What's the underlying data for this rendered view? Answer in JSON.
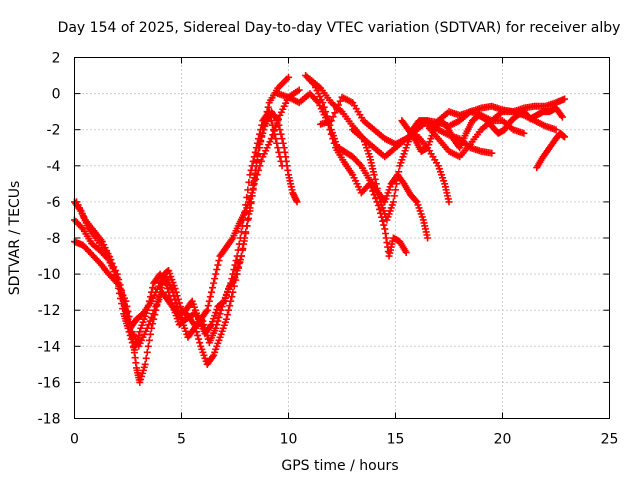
{
  "chart_data": {
    "type": "scatter",
    "title": "Day 154 of 2025, Sidereal Day-to-day VTEC variation (SDTVAR) for receiver alby",
    "xlabel": "GPS time / hours",
    "ylabel": "SDTVAR / TECUs",
    "xlim": [
      0,
      25
    ],
    "ylim": [
      -18,
      2
    ],
    "x_ticks": [
      0,
      5,
      10,
      15,
      20,
      25
    ],
    "y_ticks": [
      2,
      0,
      -2,
      -4,
      -6,
      -8,
      -10,
      -12,
      -14,
      -16,
      -18
    ],
    "grid": true,
    "marker": "+",
    "color": "#ff0000",
    "series": [
      {
        "name": "track-1",
        "points": [
          [
            0.0,
            -6.0
          ],
          [
            0.3,
            -6.5
          ],
          [
            0.6,
            -7.3
          ],
          [
            1.0,
            -8.0
          ],
          [
            1.5,
            -8.8
          ],
          [
            2.0,
            -10.0
          ],
          [
            2.4,
            -11.8
          ],
          [
            2.7,
            -13.5
          ],
          [
            2.9,
            -15.2
          ],
          [
            3.05,
            -16.0
          ],
          [
            3.3,
            -15.0
          ],
          [
            3.6,
            -13.0
          ],
          [
            3.9,
            -11.5
          ],
          [
            4.2,
            -10.0
          ],
          [
            4.4,
            -9.8
          ],
          [
            4.7,
            -10.8
          ],
          [
            5.0,
            -12.0
          ],
          [
            5.3,
            -12.3
          ],
          [
            5.6,
            -12.8
          ],
          [
            5.9,
            -14.0
          ],
          [
            6.2,
            -15.0
          ],
          [
            6.5,
            -14.5
          ],
          [
            6.8,
            -13.5
          ],
          [
            7.1,
            -12.5
          ],
          [
            7.4,
            -11.0
          ],
          [
            7.8,
            -9.0
          ],
          [
            8.2,
            -6.5
          ],
          [
            8.5,
            -4.0
          ],
          [
            8.8,
            -2.0
          ],
          [
            9.1,
            -0.5
          ],
          [
            9.5,
            0.3
          ],
          [
            10.0,
            0.9
          ]
        ]
      },
      {
        "name": "track-2",
        "points": [
          [
            0.0,
            -7.0
          ],
          [
            0.4,
            -7.5
          ],
          [
            0.8,
            -8.3
          ],
          [
            1.2,
            -8.7
          ],
          [
            1.6,
            -9.2
          ],
          [
            2.0,
            -10.2
          ],
          [
            2.4,
            -12.0
          ],
          [
            2.6,
            -13.0
          ],
          [
            2.9,
            -12.5
          ],
          [
            3.2,
            -12.2
          ],
          [
            3.6,
            -11.5
          ],
          [
            4.0,
            -10.5
          ],
          [
            4.3,
            -10.2
          ],
          [
            4.6,
            -11.0
          ],
          [
            4.9,
            -12.3
          ],
          [
            5.2,
            -12.0
          ],
          [
            5.5,
            -11.5
          ],
          [
            5.8,
            -12.5
          ],
          [
            6.1,
            -13.3
          ],
          [
            6.4,
            -12.8
          ],
          [
            6.7,
            -11.8
          ],
          [
            7.0,
            -11.5
          ],
          [
            7.3,
            -10.5
          ],
          [
            7.6,
            -9.0
          ],
          [
            7.9,
            -7.0
          ],
          [
            8.2,
            -4.5
          ],
          [
            8.5,
            -3.0
          ],
          [
            8.8,
            -1.5
          ],
          [
            9.1,
            -1.0
          ],
          [
            9.4,
            -2.5
          ],
          [
            9.7,
            -4.0
          ]
        ]
      },
      {
        "name": "track-3",
        "points": [
          [
            0.0,
            -8.2
          ],
          [
            0.4,
            -8.4
          ],
          [
            0.8,
            -8.9
          ],
          [
            1.2,
            -9.4
          ],
          [
            1.6,
            -10.0
          ],
          [
            2.0,
            -10.5
          ],
          [
            2.4,
            -11.5
          ],
          [
            2.7,
            -13.2
          ],
          [
            3.0,
            -14.0
          ],
          [
            3.4,
            -13.0
          ],
          [
            3.8,
            -11.8
          ],
          [
            4.1,
            -11.0
          ],
          [
            4.4,
            -11.5
          ],
          [
            4.7,
            -12.0
          ],
          [
            5.0,
            -12.5
          ],
          [
            5.3,
            -13.5
          ],
          [
            5.6,
            -13.0
          ],
          [
            5.9,
            -12.5
          ],
          [
            6.2,
            -12.0
          ],
          [
            6.5,
            -10.5
          ],
          [
            6.8,
            -9.0
          ],
          [
            7.1,
            -8.5
          ],
          [
            7.4,
            -8.0
          ],
          [
            7.7,
            -7.2
          ],
          [
            8.0,
            -6.5
          ],
          [
            8.3,
            -5.5
          ],
          [
            8.6,
            -3.0
          ],
          [
            8.9,
            -1.8
          ],
          [
            9.2,
            -1.0
          ],
          [
            9.5,
            -1.5
          ],
          [
            9.8,
            -3.0
          ],
          [
            10.0,
            -4.5
          ],
          [
            10.2,
            -5.5
          ],
          [
            10.4,
            -6.0
          ]
        ]
      },
      {
        "name": "track-4",
        "points": [
          [
            0.1,
            -6.0
          ],
          [
            0.5,
            -7.0
          ],
          [
            0.9,
            -7.6
          ],
          [
            1.3,
            -8.2
          ],
          [
            1.7,
            -9.2
          ],
          [
            2.0,
            -10.5
          ],
          [
            2.3,
            -12.2
          ],
          [
            2.5,
            -13.0
          ],
          [
            2.8,
            -14.2
          ],
          [
            3.1,
            -13.0
          ],
          [
            3.4,
            -12.0
          ],
          [
            3.7,
            -10.5
          ],
          [
            4.0,
            -10.0
          ],
          [
            4.3,
            -10.6
          ],
          [
            4.6,
            -11.8
          ],
          [
            4.9,
            -12.8
          ],
          [
            5.2,
            -12.5
          ],
          [
            5.6,
            -12.2
          ],
          [
            6.0,
            -12.6
          ],
          [
            6.3,
            -13.8
          ],
          [
            6.6,
            -13.0
          ],
          [
            6.9,
            -11.8
          ],
          [
            7.2,
            -10.8
          ],
          [
            7.5,
            -10.2
          ],
          [
            7.8,
            -9.0
          ],
          [
            8.1,
            -7.0
          ],
          [
            8.4,
            -5.0
          ],
          [
            8.8,
            -3.5
          ],
          [
            9.2,
            -2.5
          ],
          [
            9.6,
            -1.2
          ],
          [
            10.0,
            -0.2
          ],
          [
            10.5,
            0.2
          ]
        ]
      },
      {
        "name": "track-5",
        "points": [
          [
            9.5,
            0.0
          ],
          [
            10.0,
            -0.2
          ],
          [
            10.5,
            -0.5
          ],
          [
            11.0,
            0.0
          ],
          [
            11.4,
            -0.5
          ],
          [
            11.8,
            -1.5
          ],
          [
            12.2,
            -3.0
          ],
          [
            12.6,
            -3.8
          ],
          [
            13.0,
            -4.5
          ],
          [
            13.4,
            -5.5
          ],
          [
            13.8,
            -5.0
          ],
          [
            14.2,
            -6.2
          ],
          [
            14.5,
            -7.5
          ],
          [
            14.7,
            -9.0
          ],
          [
            14.9,
            -8.0
          ],
          [
            15.2,
            -8.2
          ],
          [
            15.5,
            -8.8
          ]
        ]
      },
      {
        "name": "track-6",
        "points": [
          [
            10.8,
            1.0
          ],
          [
            11.2,
            0.5
          ],
          [
            11.6,
            -0.5
          ],
          [
            12.0,
            -2.0
          ],
          [
            12.3,
            -3.0
          ],
          [
            12.6,
            -3.2
          ],
          [
            13.0,
            -3.5
          ],
          [
            13.4,
            -4.0
          ],
          [
            13.8,
            -4.8
          ],
          [
            14.2,
            -5.5
          ],
          [
            14.5,
            -6.0
          ],
          [
            14.8,
            -5.0
          ],
          [
            15.1,
            -4.5
          ],
          [
            15.4,
            -5.0
          ],
          [
            15.7,
            -5.6
          ],
          [
            16.0,
            -6.0
          ],
          [
            16.3,
            -7.0
          ],
          [
            16.5,
            -8.0
          ]
        ]
      },
      {
        "name": "track-7",
        "points": [
          [
            11.0,
            0.8
          ],
          [
            11.5,
            0.3
          ],
          [
            12.0,
            -0.5
          ],
          [
            12.5,
            -1.0
          ],
          [
            13.0,
            -1.8
          ],
          [
            13.5,
            -2.5
          ],
          [
            13.8,
            -3.5
          ],
          [
            14.0,
            -4.5
          ],
          [
            14.3,
            -6.0
          ],
          [
            14.6,
            -7.0
          ],
          [
            14.9,
            -6.0
          ],
          [
            15.2,
            -4.0
          ],
          [
            15.5,
            -3.0
          ],
          [
            15.8,
            -2.0
          ],
          [
            16.1,
            -1.5
          ],
          [
            16.5,
            -1.5
          ],
          [
            17.0,
            -1.6
          ],
          [
            17.5,
            -1.8
          ],
          [
            18.0,
            -1.5
          ],
          [
            18.5,
            -1.0
          ],
          [
            19.0,
            -1.2
          ],
          [
            19.5,
            -1.5
          ],
          [
            20.0,
            -1.5
          ],
          [
            20.5,
            -2.0
          ],
          [
            21.0,
            -2.2
          ]
        ]
      },
      {
        "name": "track-8",
        "points": [
          [
            11.5,
            -1.7
          ],
          [
            12.0,
            -1.5
          ],
          [
            12.5,
            -0.2
          ],
          [
            13.0,
            -0.5
          ],
          [
            13.5,
            -1.5
          ],
          [
            14.0,
            -2.0
          ],
          [
            14.5,
            -2.5
          ],
          [
            15.0,
            -2.8
          ],
          [
            15.5,
            -2.5
          ],
          [
            16.0,
            -2.3
          ],
          [
            16.5,
            -3.0
          ],
          [
            17.0,
            -4.0
          ],
          [
            17.3,
            -5.0
          ],
          [
            17.5,
            -6.0
          ]
        ]
      },
      {
        "name": "track-9",
        "points": [
          [
            13.0,
            -2.0
          ],
          [
            13.5,
            -2.5
          ],
          [
            14.0,
            -3.0
          ],
          [
            14.5,
            -3.5
          ],
          [
            15.0,
            -3.0
          ],
          [
            15.5,
            -2.5
          ],
          [
            16.0,
            -2.0
          ],
          [
            16.5,
            -1.5
          ],
          [
            17.0,
            -2.0
          ],
          [
            17.5,
            -2.3
          ],
          [
            18.0,
            -2.5
          ],
          [
            18.5,
            -3.0
          ],
          [
            19.0,
            -3.2
          ],
          [
            19.5,
            -3.3
          ]
        ]
      },
      {
        "name": "track-10",
        "points": [
          [
            16.5,
            -1.8
          ],
          [
            17.0,
            -2.5
          ],
          [
            17.5,
            -3.2
          ],
          [
            18.0,
            -3.5
          ],
          [
            18.5,
            -2.8
          ],
          [
            19.0,
            -2.0
          ],
          [
            19.5,
            -1.5
          ],
          [
            20.0,
            -1.0
          ],
          [
            20.5,
            -1.0
          ],
          [
            21.0,
            -0.8
          ],
          [
            21.5,
            -0.7
          ],
          [
            22.0,
            -0.7
          ],
          [
            22.5,
            -0.5
          ],
          [
            22.9,
            -0.3
          ]
        ]
      },
      {
        "name": "track-11",
        "points": [
          [
            17.0,
            -1.5
          ],
          [
            17.5,
            -1.0
          ],
          [
            18.0,
            -1.2
          ],
          [
            18.5,
            -1.0
          ],
          [
            19.0,
            -0.8
          ],
          [
            19.5,
            -0.7
          ],
          [
            20.0,
            -0.9
          ],
          [
            20.5,
            -1.0
          ],
          [
            21.0,
            -1.2
          ],
          [
            21.5,
            -1.5
          ],
          [
            22.0,
            -1.8
          ],
          [
            22.5,
            -2.0
          ]
        ]
      },
      {
        "name": "track-12",
        "points": [
          [
            21.6,
            -4.1
          ],
          [
            21.9,
            -3.5
          ],
          [
            22.2,
            -3.0
          ],
          [
            22.5,
            -2.5
          ],
          [
            22.7,
            -2.2
          ],
          [
            22.9,
            -2.4
          ]
        ]
      },
      {
        "name": "track-13",
        "points": [
          [
            15.3,
            -1.5
          ],
          [
            15.6,
            -2.0
          ],
          [
            15.9,
            -2.5
          ],
          [
            16.2,
            -3.2
          ],
          [
            16.5,
            -3.0
          ],
          [
            16.8,
            -2.0
          ],
          [
            17.1,
            -1.5
          ],
          [
            17.4,
            -1.8
          ],
          [
            17.7,
            -2.5
          ],
          [
            18.0,
            -3.0
          ],
          [
            18.3,
            -2.2
          ],
          [
            18.6,
            -1.5
          ],
          [
            18.9,
            -1.2
          ],
          [
            19.2,
            -1.4
          ],
          [
            19.5,
            -1.8
          ],
          [
            19.8,
            -2.2
          ],
          [
            20.1,
            -2.0
          ],
          [
            20.4,
            -1.5
          ],
          [
            20.7,
            -1.2
          ],
          [
            21.0,
            -1.0
          ],
          [
            21.3,
            -1.4
          ],
          [
            21.6,
            -1.2
          ],
          [
            21.9,
            -1.0
          ],
          [
            22.2,
            -1.0
          ],
          [
            22.5,
            -0.8
          ],
          [
            22.8,
            -1.3
          ]
        ]
      }
    ]
  }
}
